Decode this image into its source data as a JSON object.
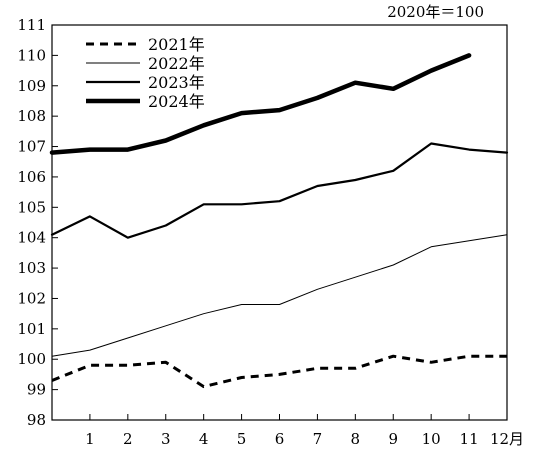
{
  "chart_data": {
    "type": "line",
    "note": "2020年＝100",
    "x": [
      0,
      1,
      2,
      3,
      4,
      5,
      6,
      7,
      8,
      9,
      10,
      11,
      12
    ],
    "x_tick_labels": [
      "1",
      "2",
      "3",
      "4",
      "5",
      "6",
      "7",
      "8",
      "9",
      "10",
      "11",
      "12月"
    ],
    "ylim": [
      98,
      111
    ],
    "y_ticks": [
      98,
      99,
      100,
      101,
      102,
      103,
      104,
      105,
      106,
      107,
      108,
      109,
      110,
      111
    ],
    "grid": false,
    "legend_position": "top-left",
    "series": [
      {
        "name": "2021年",
        "style": "dashed",
        "color": "#000000",
        "x": [
          0,
          1,
          2,
          3,
          4,
          5,
          6,
          7,
          8,
          9,
          10,
          11,
          12
        ],
        "values": [
          99.3,
          99.8,
          99.8,
          99.9,
          99.1,
          99.4,
          99.5,
          99.7,
          99.7,
          100.1,
          99.9,
          100.1,
          100.1
        ]
      },
      {
        "name": "2022年",
        "style": "thin",
        "color": "#000000",
        "x": [
          0,
          1,
          2,
          3,
          4,
          5,
          6,
          7,
          8,
          9,
          10,
          11,
          12
        ],
        "values": [
          100.1,
          100.3,
          100.7,
          101.1,
          101.5,
          101.8,
          101.8,
          102.3,
          102.7,
          103.1,
          103.7,
          103.9,
          104.1
        ]
      },
      {
        "name": "2023年",
        "style": "medium",
        "color": "#000000",
        "x": [
          0,
          1,
          2,
          3,
          4,
          5,
          6,
          7,
          8,
          9,
          10,
          11,
          12
        ],
        "values": [
          104.1,
          104.7,
          104.0,
          104.4,
          105.1,
          105.1,
          105.2,
          105.7,
          105.9,
          106.2,
          107.1,
          106.9,
          106.8
        ]
      },
      {
        "name": "2024年",
        "style": "thick",
        "color": "#000000",
        "x": [
          0,
          1,
          2,
          3,
          4,
          5,
          6,
          7,
          8,
          9,
          10,
          11
        ],
        "values": [
          106.8,
          106.9,
          106.9,
          107.2,
          107.7,
          108.1,
          108.2,
          108.6,
          109.1,
          108.9,
          109.5,
          110.0
        ]
      }
    ]
  }
}
